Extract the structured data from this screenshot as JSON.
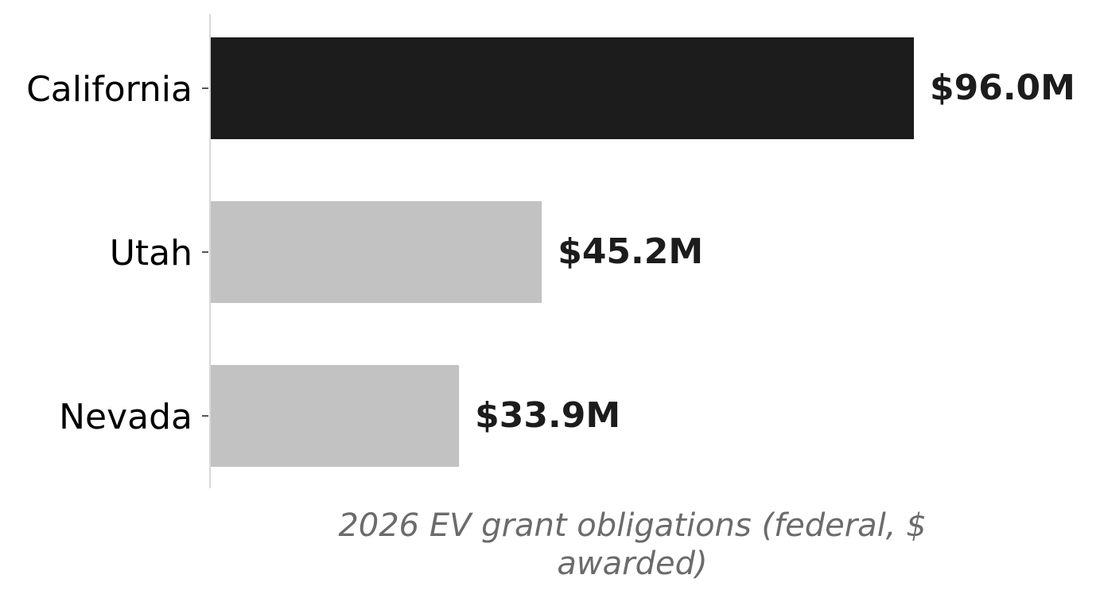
{
  "chart_data": {
    "type": "bar",
    "orientation": "horizontal",
    "categories": [
      "California",
      "Utah",
      "Nevada"
    ],
    "values": [
      96.0,
      45.2,
      33.9
    ],
    "value_labels": [
      "$96.0M",
      "$45.2M",
      "$33.9M"
    ],
    "unit": "$M",
    "xlabel_lines": [
      "2026 EV grant obligations (federal, $",
      "awarded)"
    ],
    "ylabel": "",
    "title": "",
    "xlim": [
      0,
      96.0
    ],
    "grid": false,
    "legend": "none",
    "colors": {
      "highlight": "#1c1c1c",
      "default": "#c2c2c2",
      "axis": "#d9d9d9",
      "tick": "#555555"
    },
    "highlight_index": 0
  }
}
